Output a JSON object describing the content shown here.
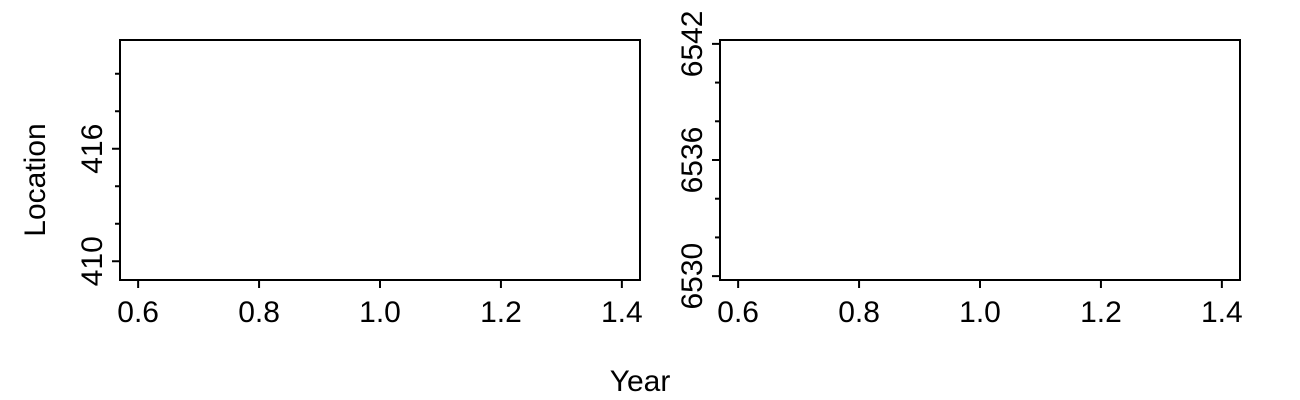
{
  "figure": {
    "xlabel": "Year",
    "ylabel": "Location"
  },
  "chart_data": [
    {
      "type": "scatter",
      "title": "",
      "xlabel": "",
      "ylabel": "",
      "xlim": [
        0.57,
        1.43
      ],
      "ylim": [
        409,
        421.8
      ],
      "x_ticks": [
        0.6,
        0.8,
        1.0,
        1.2,
        1.4
      ],
      "x_tick_labels": [
        "0.6",
        "0.8",
        "1.0",
        "1.2",
        "1.4"
      ],
      "y_major_ticks": [
        410,
        416
      ],
      "y_tick_labels": [
        "410",
        "416"
      ],
      "y_minor_ticks": [
        412,
        414,
        418,
        420
      ],
      "grid": false,
      "series": []
    },
    {
      "type": "scatter",
      "title": "",
      "xlabel": "",
      "ylabel": "",
      "xlim": [
        0.57,
        1.43
      ],
      "ylim": [
        6529.8,
        6542.2
      ],
      "x_ticks": [
        0.6,
        0.8,
        1.0,
        1.2,
        1.4
      ],
      "x_tick_labels": [
        "0.6",
        "0.8",
        "1.0",
        "1.2",
        "1.4"
      ],
      "y_major_ticks": [
        6530,
        6536,
        6542
      ],
      "y_tick_labels": [
        "6530",
        "6536",
        "6542"
      ],
      "y_minor_ticks": [
        6532,
        6534,
        6538,
        6540
      ],
      "grid": false,
      "series": []
    }
  ]
}
